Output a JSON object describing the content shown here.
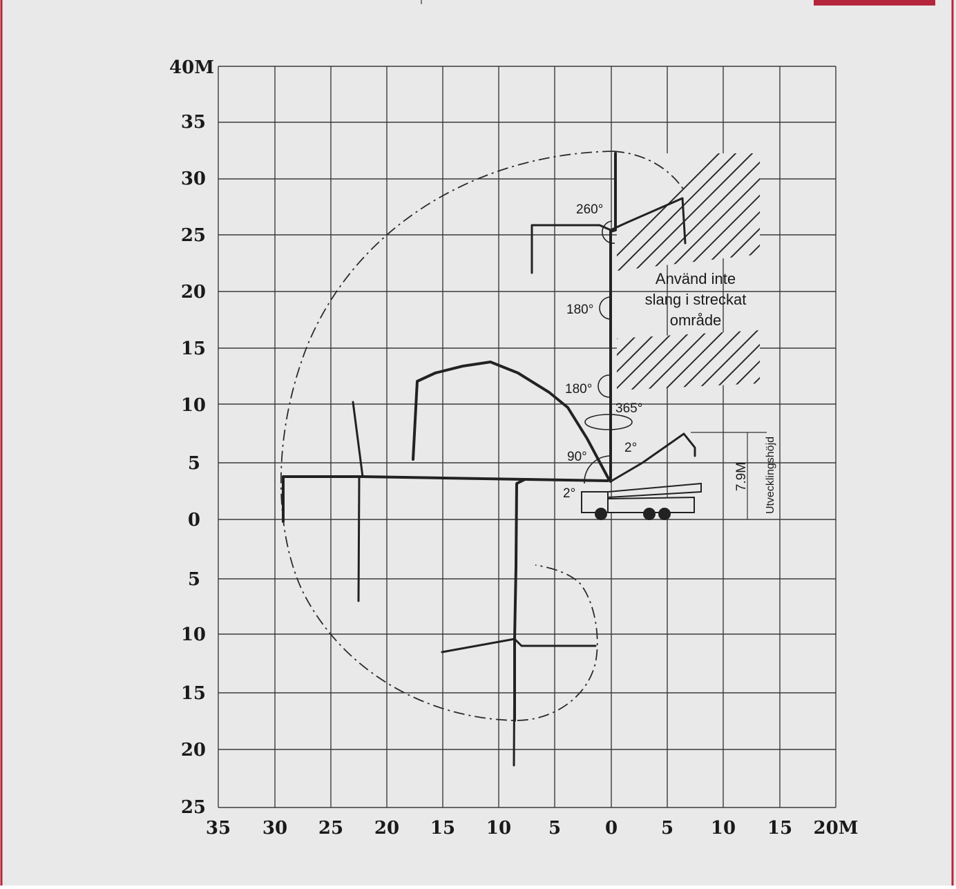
{
  "colors": {
    "frame": "#b5263c",
    "background": "#e9e9e9",
    "ink": "#222222"
  },
  "diagram": {
    "y_ticks": [
      "40M",
      "35",
      "30",
      "25",
      "20",
      "15",
      "10",
      "5",
      "0",
      "5",
      "10",
      "15",
      "20",
      "25"
    ],
    "x_ticks": [
      "35",
      "30",
      "25",
      "20",
      "15",
      "10",
      "5",
      "0",
      "5",
      "10",
      "15",
      "20M"
    ],
    "angles": [
      "260°",
      "180°",
      "180°",
      "365°",
      "90°",
      "2°",
      "2°"
    ],
    "note_lines": [
      "Använd inte",
      "slang i streckat",
      "område"
    ],
    "unfold_height": "7.9M",
    "unfold_label": "Utvecklingshöjd"
  }
}
